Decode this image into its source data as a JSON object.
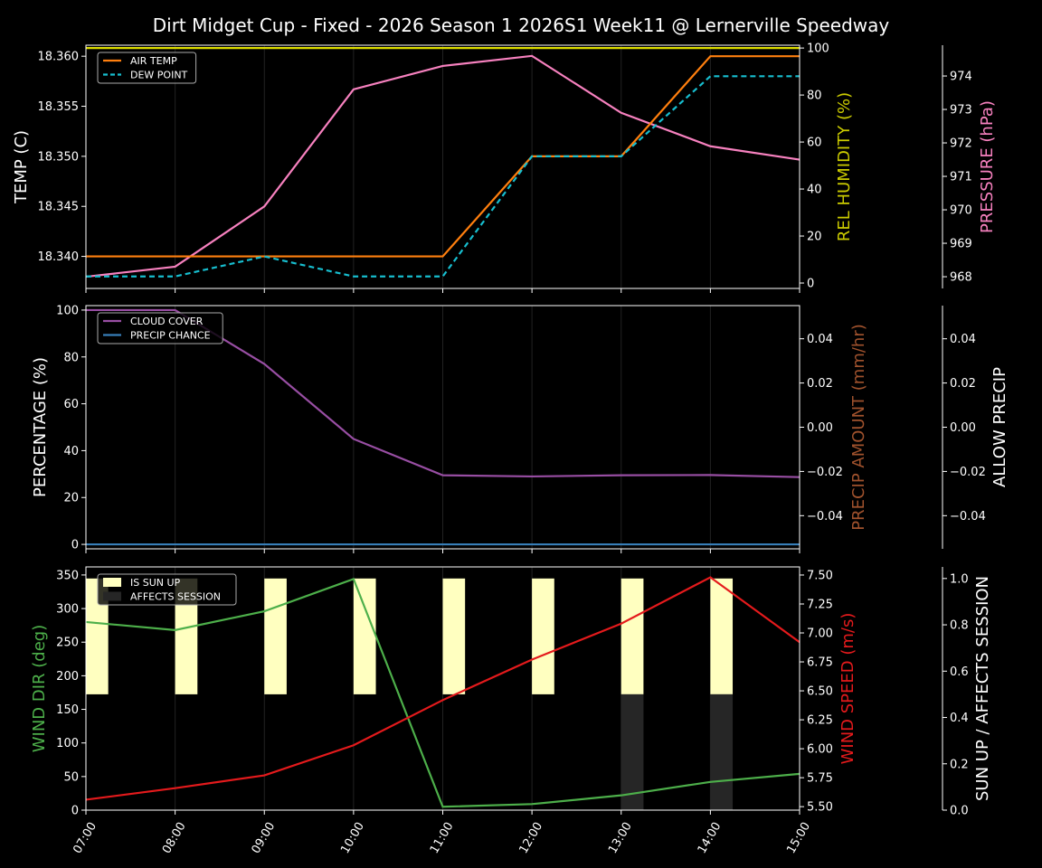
{
  "chart_data": {
    "type": "line",
    "title": "Dirt Midget Cup - Fixed - 2026 Season 1 2026S1 Week11 @ Lernerville Speedway",
    "x": [
      "07:00",
      "08:00",
      "09:00",
      "10:00",
      "11:00",
      "12:00",
      "13:00",
      "14:00",
      "15:00"
    ],
    "panels": [
      {
        "axes": [
          {
            "side": "left",
            "label": "TEMP (C)",
            "color": "#ffffff",
            "ylim": [
              18.3368,
              18.3611
            ],
            "ticks": [
              "18.340",
              "18.345",
              "18.350",
              "18.355",
              "18.360"
            ]
          },
          {
            "side": "right",
            "label": "REL HUMIDITY (%)",
            "color": "#cccc00",
            "ylim": [
              -2.3,
              101.2
            ],
            "ticks": [
              "0",
              "20",
              "40",
              "60",
              "80",
              "100"
            ]
          },
          {
            "side": "right2",
            "label": "PRESSURE (hPa)",
            "color": "#f781bf",
            "ylim": [
              967.65,
              974.92
            ],
            "ticks": [
              "968",
              "969",
              "970",
              "971",
              "972",
              "973",
              "974"
            ]
          }
        ],
        "series": [
          {
            "name": "REL HUMIDITY",
            "axis": 1,
            "color": "#dddd00",
            "style": "solid",
            "legend": false,
            "values": [
              100,
              100,
              100,
              100,
              100,
              100,
              100,
              100,
              100
            ]
          },
          {
            "name": "PRESSURE",
            "axis": 2,
            "color": "#f781bf",
            "style": "solid",
            "legend": false,
            "values": [
              968.0,
              968.3,
              970.1,
              973.6,
              974.3,
              974.6,
              972.9,
              971.9,
              971.5
            ]
          },
          {
            "name": "AIR TEMP",
            "axis": 0,
            "color": "#ff7f0e",
            "style": "solid",
            "legend": true,
            "values": [
              18.34,
              18.34,
              18.34,
              18.34,
              18.34,
              18.35,
              18.35,
              18.36,
              18.36
            ]
          },
          {
            "name": "DEW POINT",
            "axis": 0,
            "color": "#17becf",
            "style": "dashed",
            "legend": true,
            "values": [
              18.338,
              18.338,
              18.34,
              18.338,
              18.338,
              18.35,
              18.35,
              18.358,
              18.358
            ]
          }
        ]
      },
      {
        "axes": [
          {
            "side": "left",
            "label": "PERCENTAGE (%)",
            "color": "#ffffff",
            "ylim": [
              -1.9,
              101.9
            ],
            "ticks": [
              "0",
              "20",
              "40",
              "60",
              "80",
              "100"
            ]
          },
          {
            "side": "right",
            "label": "PRECIP AMOUNT (mm/hr)",
            "color": "#a0522d",
            "ylim": [
              -0.055,
              0.055
            ],
            "ticks": [
              "−0.04",
              "−0.02",
              "0.00",
              "0.02",
              "0.04"
            ]
          },
          {
            "side": "right2",
            "label": "ALLOW PRECIP",
            "color": "#ffffff",
            "ylim": [
              -0.055,
              0.055
            ],
            "ticks": [
              "−0.04",
              "−0.02",
              "0.00",
              "0.02",
              "0.04"
            ]
          }
        ],
        "series": [
          {
            "name": "CLOUD COVER",
            "axis": 0,
            "color": "#984ea3",
            "style": "solid",
            "legend": true,
            "values": [
              100,
              100,
              77,
              45,
              29.5,
              29,
              29.5,
              29.6,
              28.7
            ]
          },
          {
            "name": "PRECIP CHANCE",
            "axis": 0,
            "color": "#377eb8",
            "style": "solid",
            "legend": true,
            "values": [
              0,
              0,
              0,
              0,
              0,
              0,
              0,
              0,
              0
            ]
          }
        ]
      },
      {
        "axes": [
          {
            "side": "left",
            "label": "WIND DIR (deg)",
            "color": "#4daf4a",
            "ylim": [
              0,
              362
            ],
            "ticks": [
              "0",
              "50",
              "100",
              "150",
              "200",
              "250",
              "300",
              "350"
            ]
          },
          {
            "side": "right",
            "label": "WIND SPEED (m/s)",
            "color": "#e41a1c",
            "ylim": [
              5.47,
              7.57
            ],
            "ticks": [
              "5.50",
              "5.75",
              "6.00",
              "6.25",
              "6.50",
              "6.75",
              "7.00",
              "7.25",
              "7.50"
            ]
          },
          {
            "side": "right2",
            "label": "SUN UP / AFFECTS SESSION",
            "color": "#ffffff",
            "ylim": [
              0,
              1.05
            ],
            "ticks": [
              "0.0",
              "0.2",
              "0.4",
              "0.6",
              "0.8",
              "1.0"
            ]
          }
        ],
        "bars": [
          {
            "name": "IS SUN UP",
            "color": "#ffffc0",
            "range": [
              0.5,
              1.0
            ],
            "values": [
              1,
              1,
              1,
              1,
              1,
              1,
              1,
              1,
              0
            ]
          },
          {
            "name": "AFFECTS SESSION",
            "color": "#262626",
            "range": [
              0,
              0.5
            ],
            "values": [
              0,
              0,
              0,
              0,
              0,
              0,
              1,
              1,
              0
            ]
          }
        ],
        "series": [
          {
            "name": "WIND DIR",
            "axis": 0,
            "color": "#4daf4a",
            "style": "solid",
            "legend": false,
            "values": [
              280,
              268,
              296,
              344,
              5,
              9,
              22,
              42,
              54
            ]
          },
          {
            "name": "WIND SPEED",
            "axis": 1,
            "color": "#e41a1c",
            "style": "solid",
            "legend": false,
            "values": [
              5.56,
              5.66,
              5.77,
              6.03,
              6.42,
              6.77,
              7.08,
              7.48,
              6.92
            ]
          }
        ]
      }
    ]
  }
}
